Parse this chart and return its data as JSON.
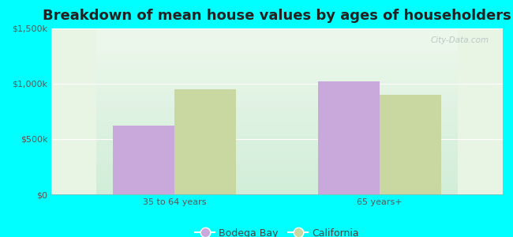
{
  "title": "Breakdown of mean house values by ages of householders",
  "categories": [
    "35 to 64 years",
    "65 years+"
  ],
  "series": {
    "Bodega Bay": [
      620000,
      1020000
    ],
    "California": [
      950000,
      900000
    ]
  },
  "bar_colors": {
    "Bodega Bay": "#c9a8dc",
    "California": "#c8d8a0"
  },
  "ylim": [
    0,
    1500000
  ],
  "yticks": [
    0,
    500000,
    1000000,
    1500000
  ],
  "ytick_labels": [
    "$0",
    "$500k",
    "$1,000k",
    "$1,500k"
  ],
  "background_color": "#00ffff",
  "plot_bg_color": "#dff2e0",
  "title_fontsize": 13,
  "legend_fontsize": 9,
  "tick_fontsize": 8,
  "bar_width": 0.3,
  "watermark": "City-Data.com"
}
